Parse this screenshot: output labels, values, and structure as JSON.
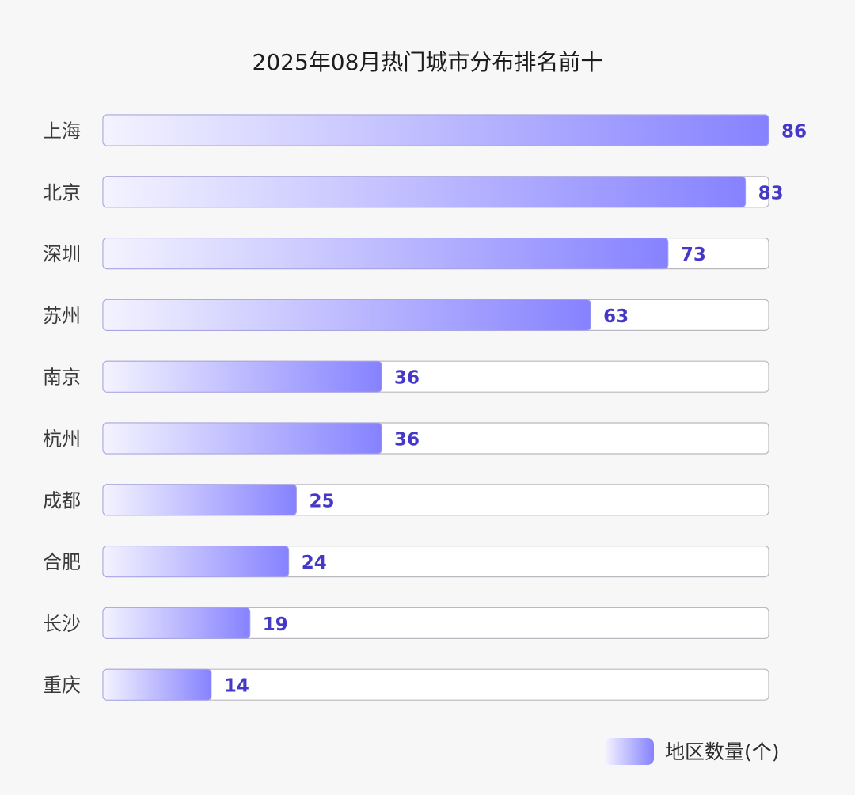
{
  "chart_data": {
    "type": "bar",
    "orientation": "horizontal",
    "title": "2025年08月热门城市分布排名前十",
    "categories": [
      "上海",
      "北京",
      "深圳",
      "苏州",
      "南京",
      "杭州",
      "成都",
      "合肥",
      "长沙",
      "重庆"
    ],
    "series": [
      {
        "name": "地区数量(个)",
        "values": [
          86,
          83,
          73,
          63,
          36,
          36,
          25,
          24,
          19,
          14
        ]
      }
    ],
    "xlim": [
      0,
      86
    ],
    "grid": false,
    "legend": "bottom-right",
    "colors": {
      "bar_start": "#f4f3ff",
      "bar_end": "#8682ff",
      "value_label": "#4538c8",
      "track_fill": "#ffffff",
      "track_stroke": "#b9b9bf"
    }
  }
}
